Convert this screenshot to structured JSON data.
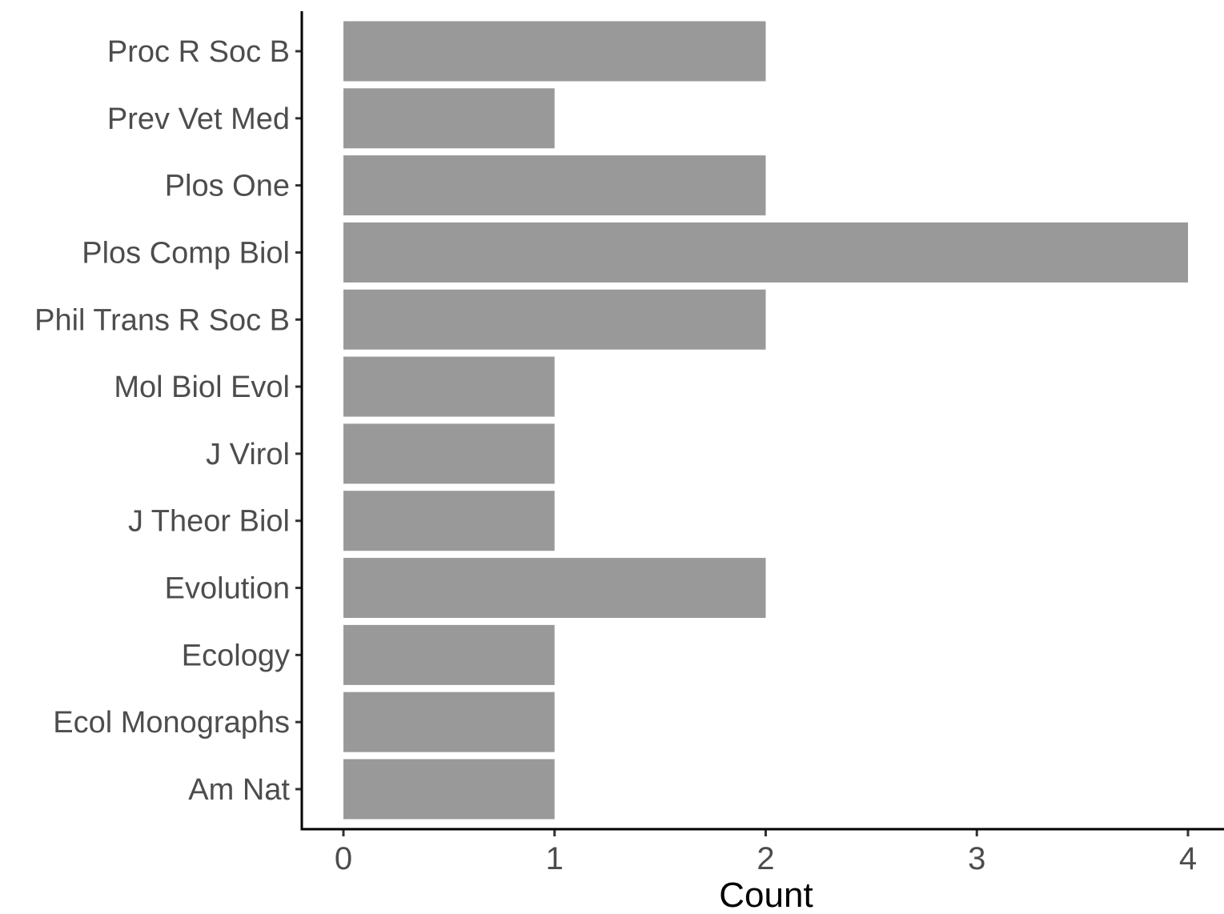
{
  "chart_data": {
    "type": "bar",
    "orientation": "horizontal",
    "categories": [
      "Am Nat",
      "Ecol Monographs",
      "Ecology",
      "Evolution",
      "J Theor Biol",
      "J Virol",
      "Mol Biol Evol",
      "Phil Trans R Soc B",
      "Plos Comp Biol",
      "Plos One",
      "Prev Vet Med",
      "Proc R Soc B"
    ],
    "values": [
      1,
      1,
      1,
      2,
      1,
      1,
      1,
      2,
      4,
      2,
      1,
      2
    ],
    "xlabel": "Count",
    "ylabel": "",
    "xlim": [
      0,
      4
    ],
    "xticks": [
      "0",
      "1",
      "2",
      "3",
      "4"
    ],
    "grid": false,
    "bar_color": "#999999"
  }
}
